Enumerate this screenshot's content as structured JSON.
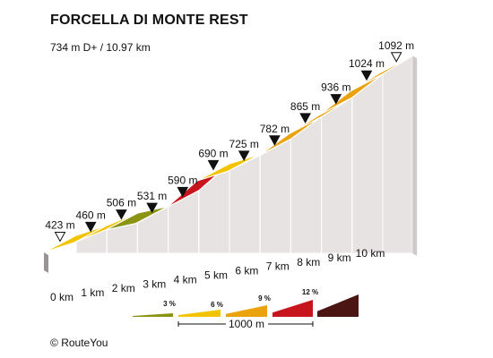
{
  "header": {
    "title": "FORCELLA DI MONTE REST",
    "subtitle": "734 m D+ / 10.97 km"
  },
  "footer": {
    "copyright_symbol": "©",
    "brand": "RouteYou"
  },
  "chart_data": {
    "type": "area",
    "title": "FORCELLA DI MONTE REST",
    "subtitle": "734 m D+ / 10.97 km",
    "x_unit": "km",
    "y_unit": "m",
    "x": [
      0,
      1,
      2,
      3,
      4,
      5,
      6,
      7,
      8,
      9,
      10,
      10.97
    ],
    "elevation": [
      423,
      460,
      506,
      531,
      590,
      690,
      725,
      782,
      865,
      936,
      1024,
      1092
    ],
    "elevation_labels": [
      "423 m",
      "460 m",
      "506 m",
      "531 m",
      "590 m",
      "690 m",
      "725 m",
      "782 m",
      "865 m",
      "936 m",
      "1024 m",
      "1092 m"
    ],
    "km_labels": [
      "0 km",
      "1 km",
      "2 km",
      "3 km",
      "4 km",
      "5 km",
      "6 km",
      "7 km",
      "8 km",
      "9 km",
      "10 km"
    ],
    "segment_colors": [
      "#f3c300",
      "#f3c300",
      "#8a9312",
      "#f3c300",
      "#c8151d",
      "#f3c300",
      "#f3c300",
      "#eaa30e",
      "#eaa30e",
      "#eaa30e",
      "#eaa30e"
    ],
    "legend": {
      "grade_labels": [
        "3 %",
        "6 %",
        "9 %",
        "12 %"
      ],
      "grade_colors": [
        "#8a9312",
        "#f3c300",
        "#eaa30e",
        "#c8151d",
        "#4a1512"
      ],
      "scale_label": "1000 m"
    }
  }
}
